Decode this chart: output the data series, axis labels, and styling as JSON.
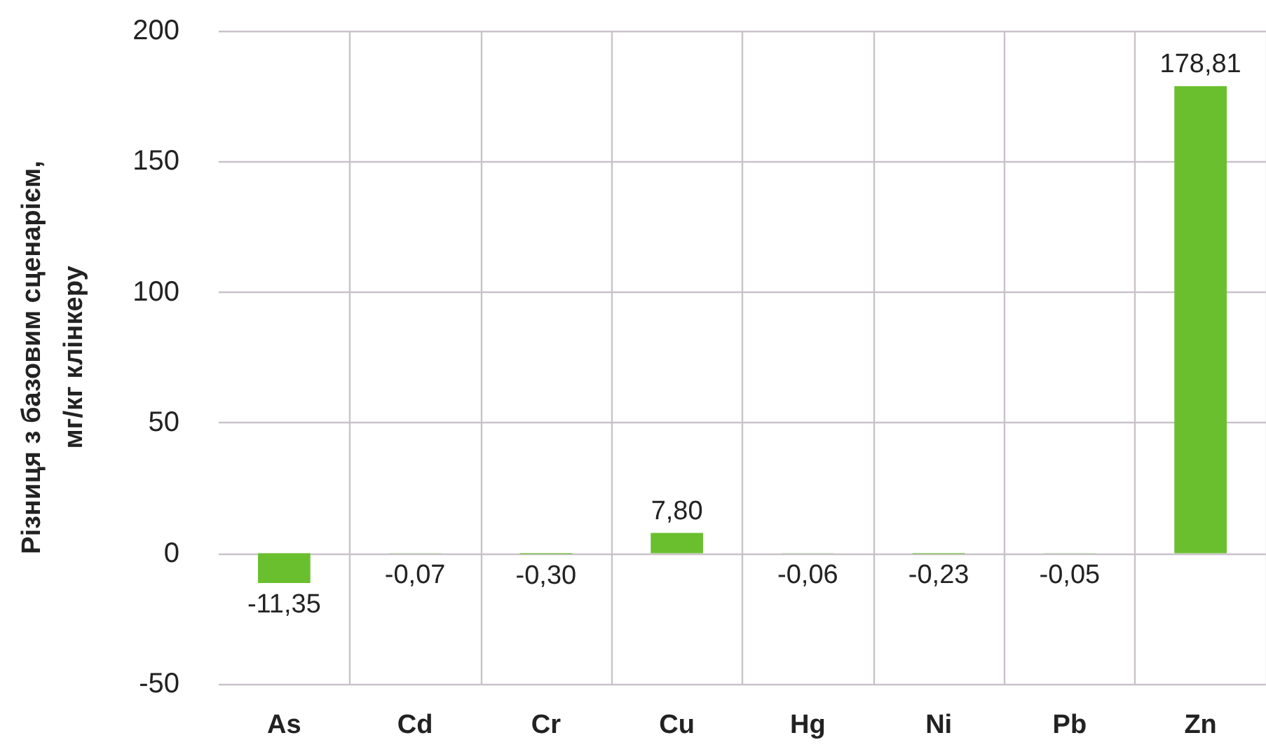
{
  "chart_data": {
    "type": "bar",
    "ylabel": "Різниця з базовим сценарієм,\nмг/кг клінкеру",
    "categories": [
      "As",
      "Cd",
      "Cr",
      "Cu",
      "Hg",
      "Ni",
      "Pb",
      "Zn"
    ],
    "values": [
      -11.35,
      -0.07,
      -0.3,
      7.8,
      -0.06,
      -0.23,
      -0.05,
      178.81
    ],
    "value_labels": [
      "-11,35",
      "-0,07",
      "-0,30",
      "7,80",
      "-0,06",
      "-0,23",
      "-0,05",
      "178,81"
    ],
    "color": "#6abf2e",
    "ylim": [
      -50,
      200
    ],
    "yticks": [
      -50,
      0,
      50,
      100,
      150,
      200
    ],
    "grid": true
  }
}
